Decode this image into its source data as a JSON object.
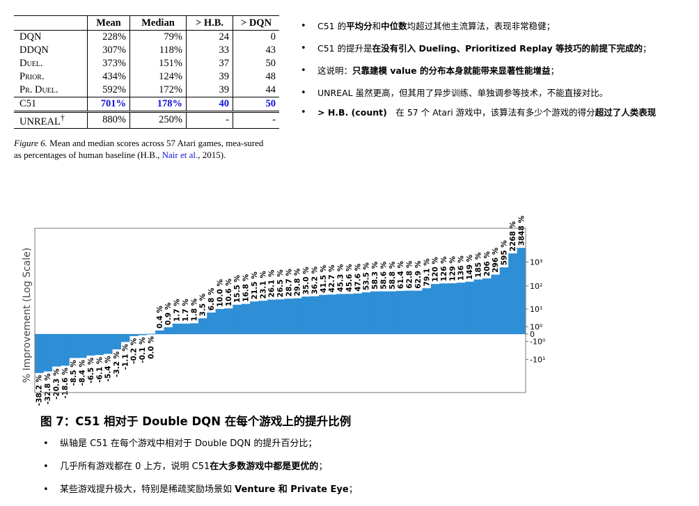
{
  "table": {
    "headers": [
      "",
      "Mean",
      "Median",
      "> H.B.",
      "> DQN"
    ],
    "rows": [
      {
        "algo": "DQN",
        "mean": "228%",
        "median": "79%",
        "hb": "24",
        "dqn": "0"
      },
      {
        "algo": "DDQN",
        "mean": "307%",
        "median": "118%",
        "hb": "33",
        "dqn": "43"
      },
      {
        "algo": "Duel.",
        "mean": "373%",
        "median": "151%",
        "hb": "37",
        "dqn": "50"
      },
      {
        "algo": "Prior.",
        "mean": "434%",
        "median": "124%",
        "hb": "39",
        "dqn": "48"
      },
      {
        "algo": "Pr. Duel.",
        "mean": "592%",
        "median": "172%",
        "hb": "39",
        "dqn": "44"
      },
      {
        "algo": "C51",
        "mean": "701%",
        "median": "178%",
        "hb": "40",
        "dqn": "50"
      },
      {
        "algo": "UNREAL",
        "dagger": "†",
        "mean": "880%",
        "median": "250%",
        "hb": "-",
        "dqn": "-"
      }
    ]
  },
  "fig6": {
    "label": "Figure 6.",
    "text_a": " Mean and median scores across 57 Atari games, mea-sured as percentages of human baseline (H.B., ",
    "cite": "Nair et al.",
    "text_b": ", 2015)."
  },
  "notes": {
    "n1": {
      "a": "C51 的",
      "b1": "平均分",
      "c": "和",
      "b2": "中位数",
      "d": "均超过其他主流算法，表现非常稳健；"
    },
    "n2": {
      "a": "C51 的提升是",
      "b": "在没有引入 Dueling、Prioritized Replay 等技巧的前提下完成的",
      "c": "；"
    },
    "n3": {
      "a": "这说明：",
      "b": "只靠建模 value 的分布本身就能带来显著性能增益",
      "c": "；"
    },
    "n4": {
      "a": "UNREAL 虽然更高，但其用了异步训练、单独调参等技术，不能直接对比。"
    },
    "n5": {
      "b": "> H.B. (count)",
      "a": "　在 57 个 Atari 游戏中，该算法有多少个游戏的得分",
      "b2": "超过了人类表现"
    }
  },
  "chart_data": {
    "type": "bar",
    "ylabel": "% Improvement (Log Scale)",
    "yscale": "symlog",
    "yticks": [
      "10³",
      "10²",
      "10¹",
      "10⁰",
      "0",
      "-10⁰",
      "-10¹"
    ],
    "bar_color": "#2e8fd6",
    "labels": [
      "-38.2 %",
      "-32.8 %",
      "-20.3 %",
      "-18.6 %",
      "-8.5 %",
      "-8.4 %",
      "-6.5 %",
      "-6.1 %",
      "-5.4 %",
      "-3.2 %",
      "-1.1 %",
      "-0.2 %",
      "-0.1 %",
      "0.0 %",
      "0.4 %",
      "0.9 %",
      "1.7 %",
      "1.7 %",
      "1.8 %",
      "3.5 %",
      "6.8 %",
      "10.0 %",
      "10.6 %",
      "15.5 %",
      "16.8 %",
      "21.5 %",
      "23.1 %",
      "26.1 %",
      "26.5 %",
      "28.7 %",
      "29.8 %",
      "35.0 %",
      "36.2 %",
      "41.5 %",
      "42.7 %",
      "45.3 %",
      "45.6 %",
      "47.6 %",
      "53.5 %",
      "58.3 %",
      "58.6 %",
      "58.8 %",
      "61.4 %",
      "62.8 %",
      "62.9 %",
      "79.1 %",
      "120 %",
      "126 %",
      "129 %",
      "136 %",
      "149 %",
      "185 %",
      "206 %",
      "296 %",
      "595 %",
      "2268 %",
      "3848 %"
    ],
    "values": [
      -38.2,
      -32.8,
      -20.3,
      -18.6,
      -8.5,
      -8.4,
      -6.5,
      -6.1,
      -5.4,
      -3.2,
      -1.1,
      -0.2,
      -0.1,
      0.0,
      0.4,
      0.9,
      1.7,
      1.7,
      1.8,
      3.5,
      6.8,
      10.0,
      10.6,
      15.5,
      16.8,
      21.5,
      23.1,
      26.1,
      26.5,
      28.7,
      29.8,
      35.0,
      36.2,
      41.5,
      42.7,
      45.3,
      45.6,
      47.6,
      53.5,
      58.3,
      58.6,
      58.8,
      61.4,
      62.8,
      62.9,
      79.1,
      120,
      126,
      129,
      136,
      149,
      185,
      206,
      296,
      595,
      2268,
      3848
    ]
  },
  "fig7": {
    "title": "图 7：C51 相对于 Double DQN 在每个游戏上的提升比例",
    "n1": "纵轴是 C51 在每个游戏中相对于 Double DQN 的提升百分比；",
    "n2a": "几乎所有游戏都在 0 上方，说明 C51",
    "n2b": "在大多数游戏中都是更优的",
    "n2c": "；",
    "n3a": "某些游戏提升极大，特别是稀疏奖励场景如 ",
    "n3b": "Venture 和 Private Eye",
    "n3c": "；"
  }
}
